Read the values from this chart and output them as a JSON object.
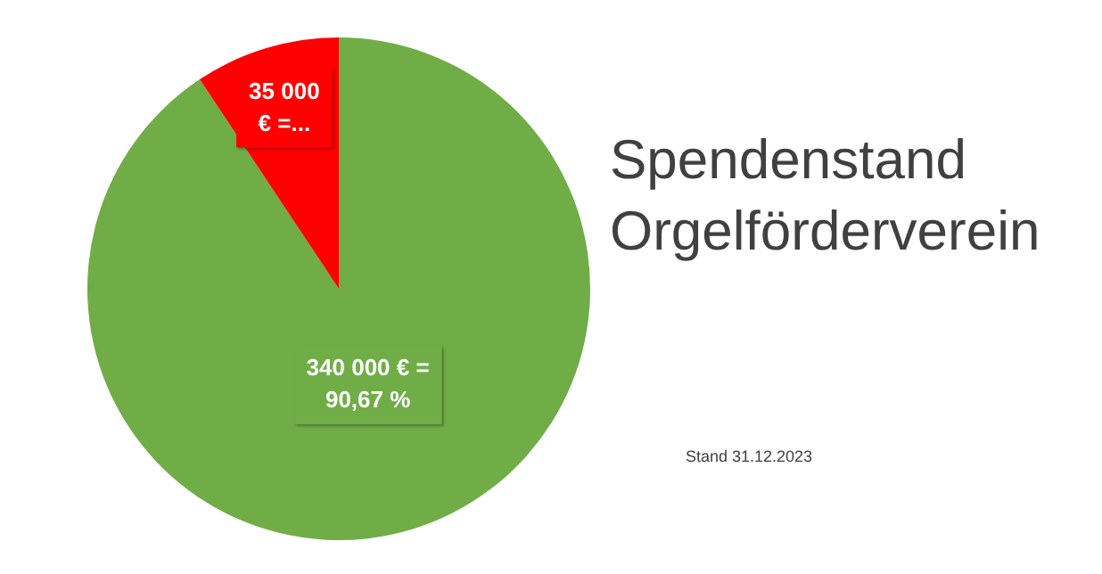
{
  "chart_data": {
    "type": "pie",
    "title": "Spendenstand Orgelförderverein",
    "categories": [
      null,
      null
    ],
    "values": [
      340000,
      35000
    ],
    "colors": [
      "#70ad47",
      "#ff0000"
    ],
    "value_labels": [
      "340 000 € = 90,67 %",
      "35 000 € =..."
    ],
    "annotations": [
      "Stand 31.12.2023"
    ],
    "legend": false
  }
}
